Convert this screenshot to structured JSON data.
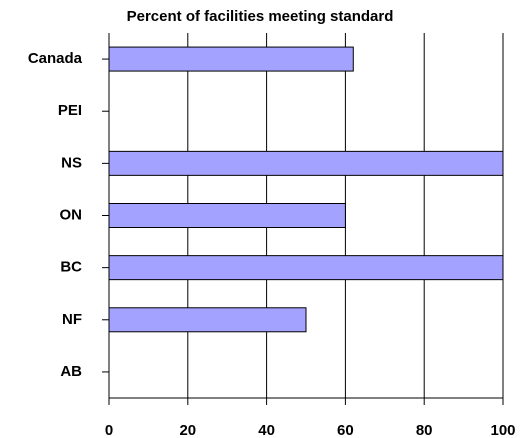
{
  "chart_data": {
    "type": "bar",
    "orientation": "horizontal",
    "title": "Percent of facilities meeting standard",
    "categories": [
      "Canada",
      "PEI",
      "NS",
      "ON",
      "BC",
      "NF",
      "AB"
    ],
    "values": [
      62,
      0,
      100,
      60,
      100,
      50,
      0
    ],
    "color": "#a3a3ff",
    "xlim": [
      0,
      100
    ],
    "xticks": [
      0,
      20,
      40,
      60,
      80,
      100
    ],
    "grid": true
  }
}
